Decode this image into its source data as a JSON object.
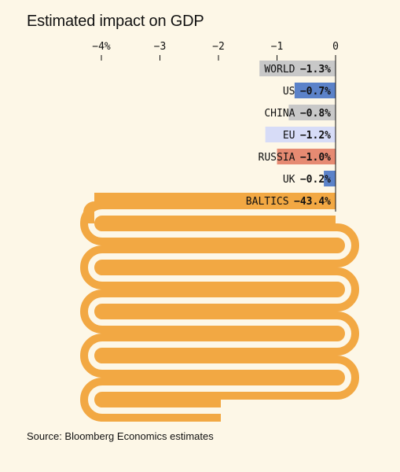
{
  "header": {
    "title": "Estimated impact on GDP"
  },
  "footer": {
    "source": "Source: Bloomberg Economics estimates"
  },
  "chart_data": {
    "type": "bar",
    "orientation": "horizontal",
    "title": "Estimated impact on GDP",
    "xlim": [
      -4.4,
      0
    ],
    "x_ticks": [
      -4,
      -3,
      -2,
      -1,
      0
    ],
    "x_tick_labels": [
      "−4%",
      "−3",
      "−2",
      "−1",
      "0"
    ],
    "categories": [
      "WORLD",
      "US",
      "CHINA",
      "EU",
      "RUSSIA",
      "UK",
      "BALTICS"
    ],
    "values": [
      -1.3,
      -0.7,
      -0.8,
      -1.2,
      -1.0,
      -0.2,
      -43.4
    ],
    "value_labels": [
      "−1.3%",
      "−0.7%",
      "−0.8%",
      "−1.2%",
      "−1.0%",
      "−0.2%",
      "−43.4%"
    ],
    "colors": [
      "#c8c8c8",
      "#5b82c9",
      "#c8c8c8",
      "#d7dcf7",
      "#e68a72",
      "#5b82c9",
      "#f2a843"
    ],
    "annotations": [
      "BALTICS bar runs far off the axis and is drawn folded back and forth"
    ]
  }
}
